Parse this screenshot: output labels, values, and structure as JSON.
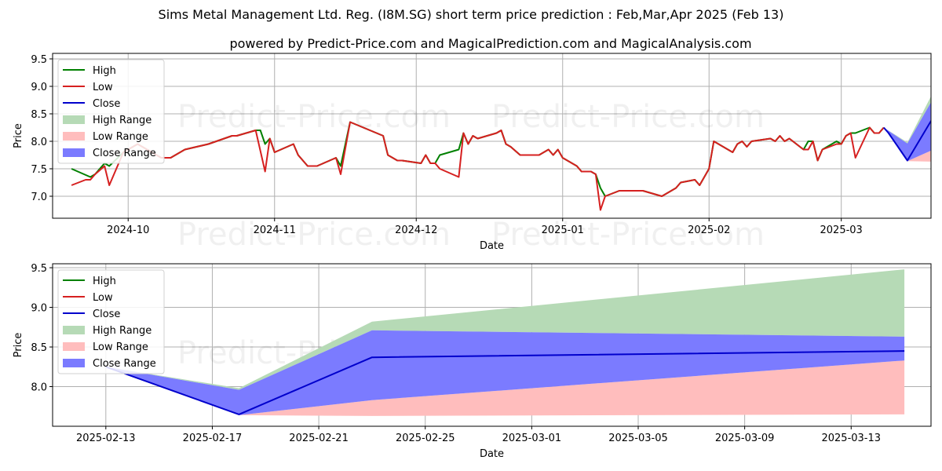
{
  "titles": {
    "main": "Sims Metal Management Ltd. Reg. (I8M.SG) short term price prediction : Feb,Mar,Apr 2025 (Feb 13)",
    "sub": "powered by Predict-Price.com and MagicalPrediction.com and MagicalAnalysis.com"
  },
  "watermark": "Predict-Price.com",
  "colors": {
    "high": "#008000",
    "low": "#d62020",
    "close": "#0000cc",
    "high_range": "#b6dab6",
    "low_range": "#ffbdbd",
    "close_range": "#7b7bff"
  },
  "chart_data": [
    {
      "type": "line",
      "xlabel": "Date",
      "ylabel": "Price",
      "xlim": [
        "2024-09-15",
        "2025-03-20"
      ],
      "ylim": [
        6.6,
        9.6
      ],
      "grid": true,
      "legend_position": "top-left",
      "legend": [
        "High",
        "Low",
        "Close",
        "High Range",
        "Low Range",
        "Close Range"
      ],
      "x_ticks": [
        {
          "date": "2024-10-01",
          "label": "2024-10"
        },
        {
          "date": "2024-11-01",
          "label": "2024-11"
        },
        {
          "date": "2024-12-01",
          "label": "2024-12"
        },
        {
          "date": "2025-01-01",
          "label": "2025-01"
        },
        {
          "date": "2025-02-01",
          "label": "2025-02"
        },
        {
          "date": "2025-03-01",
          "label": "2025-03"
        }
      ],
      "y_ticks": [
        "7.0",
        "7.5",
        "8.0",
        "8.5",
        "9.0",
        "9.5"
      ],
      "series": [
        {
          "name": "High",
          "points": [
            [
              "2024-09-19",
              7.5
            ],
            [
              "2024-09-23",
              7.35
            ],
            [
              "2024-09-24",
              7.4
            ],
            [
              "2024-09-26",
              7.6
            ],
            [
              "2024-09-27",
              7.55
            ],
            [
              "2024-09-30",
              7.8
            ],
            [
              "2024-10-03",
              7.95
            ],
            [
              "2024-10-08",
              7.7
            ],
            [
              "2024-10-10",
              7.7
            ],
            [
              "2024-10-13",
              7.85
            ],
            [
              "2024-10-18",
              7.95
            ],
            [
              "2024-10-23",
              8.1
            ],
            [
              "2024-10-24",
              8.1
            ],
            [
              "2024-10-28",
              8.2
            ],
            [
              "2024-10-29",
              8.2
            ],
            [
              "2024-10-30",
              7.95
            ],
            [
              "2024-10-31",
              8.05
            ],
            [
              "2024-11-01",
              7.8
            ],
            [
              "2024-11-05",
              7.95
            ],
            [
              "2024-11-06",
              7.75
            ],
            [
              "2024-11-08",
              7.55
            ],
            [
              "2024-11-10",
              7.55
            ],
            [
              "2024-11-14",
              7.7
            ],
            [
              "2024-11-15",
              7.55
            ],
            [
              "2024-11-17",
              8.35
            ],
            [
              "2024-11-24",
              8.1
            ],
            [
              "2024-11-25",
              7.75
            ],
            [
              "2024-11-27",
              7.65
            ],
            [
              "2024-11-28",
              7.65
            ],
            [
              "2024-12-02",
              7.6
            ],
            [
              "2024-12-03",
              7.75
            ],
            [
              "2024-12-04",
              7.6
            ],
            [
              "2024-12-05",
              7.6
            ],
            [
              "2024-12-06",
              7.75
            ],
            [
              "2024-12-10",
              7.85
            ],
            [
              "2024-12-11",
              8.15
            ],
            [
              "2024-12-12",
              7.95
            ],
            [
              "2024-12-13",
              8.1
            ],
            [
              "2024-12-14",
              8.05
            ],
            [
              "2024-12-18",
              8.15
            ],
            [
              "2024-12-19",
              8.2
            ],
            [
              "2024-12-20",
              7.95
            ],
            [
              "2024-12-21",
              7.9
            ],
            [
              "2024-12-23",
              7.75
            ],
            [
              "2024-12-27",
              7.75
            ],
            [
              "2024-12-29",
              7.85
            ],
            [
              "2024-12-30",
              7.75
            ],
            [
              "2024-12-31",
              7.85
            ],
            [
              "2025-01-01",
              7.7
            ],
            [
              "2025-01-04",
              7.55
            ],
            [
              "2025-01-05",
              7.45
            ],
            [
              "2025-01-07",
              7.45
            ],
            [
              "2025-01-08",
              7.4
            ],
            [
              "2025-01-09",
              7.15
            ],
            [
              "2025-01-10",
              7.0
            ],
            [
              "2025-01-13",
              7.1
            ],
            [
              "2025-01-18",
              7.1
            ],
            [
              "2025-01-22",
              7.0
            ],
            [
              "2025-01-25",
              7.15
            ],
            [
              "2025-01-26",
              7.25
            ],
            [
              "2025-01-29",
              7.3
            ],
            [
              "2025-01-30",
              7.2
            ],
            [
              "2025-02-01",
              7.5
            ],
            [
              "2025-02-02",
              8.0
            ],
            [
              "2025-02-06",
              7.8
            ],
            [
              "2025-02-07",
              7.95
            ],
            [
              "2025-02-08",
              8.0
            ],
            [
              "2025-02-09",
              7.9
            ],
            [
              "2025-02-10",
              8.0
            ],
            [
              "2025-02-14",
              8.05
            ],
            [
              "2025-02-15",
              8.0
            ],
            [
              "2025-02-16",
              8.1
            ],
            [
              "2025-02-17",
              8.0
            ],
            [
              "2025-02-18",
              8.05
            ],
            [
              "2025-02-21",
              7.85
            ],
            [
              "2025-02-22",
              8.0
            ],
            [
              "2025-02-23",
              8.0
            ],
            [
              "2025-02-24",
              7.65
            ],
            [
              "2025-02-25",
              7.85
            ],
            [
              "2025-02-28",
              8.0
            ],
            [
              "2025-03-01",
              7.95
            ],
            [
              "2025-03-02",
              8.1
            ],
            [
              "2025-03-03",
              8.15
            ],
            [
              "2025-03-04",
              8.15
            ],
            [
              "2025-03-07",
              8.25
            ],
            [
              "2025-03-08",
              8.15
            ],
            [
              "2025-03-09",
              8.15
            ],
            [
              "2025-03-10",
              8.25
            ]
          ]
        },
        {
          "name": "Low",
          "points": [
            [
              "2024-09-19",
              7.2
            ],
            [
              "2024-09-22",
              7.3
            ],
            [
              "2024-09-23",
              7.3
            ],
            [
              "2024-09-24",
              7.4
            ],
            [
              "2024-09-26",
              7.55
            ],
            [
              "2024-09-27",
              7.2
            ],
            [
              "2024-09-30",
              7.8
            ],
            [
              "2024-10-03",
              7.95
            ],
            [
              "2024-10-08",
              7.7
            ],
            [
              "2024-10-10",
              7.7
            ],
            [
              "2024-10-13",
              7.85
            ],
            [
              "2024-10-18",
              7.95
            ],
            [
              "2024-10-23",
              8.1
            ],
            [
              "2024-10-24",
              8.1
            ],
            [
              "2024-10-28",
              8.2
            ],
            [
              "2024-10-30",
              7.45
            ],
            [
              "2024-10-31",
              8.05
            ],
            [
              "2024-11-01",
              7.8
            ],
            [
              "2024-11-05",
              7.95
            ],
            [
              "2024-11-06",
              7.75
            ],
            [
              "2024-11-08",
              7.55
            ],
            [
              "2024-11-10",
              7.55
            ],
            [
              "2024-11-14",
              7.7
            ],
            [
              "2024-11-15",
              7.4
            ],
            [
              "2024-11-17",
              8.35
            ],
            [
              "2024-11-24",
              8.1
            ],
            [
              "2024-11-25",
              7.75
            ],
            [
              "2024-11-27",
              7.65
            ],
            [
              "2024-11-28",
              7.65
            ],
            [
              "2024-12-02",
              7.6
            ],
            [
              "2024-12-03",
              7.75
            ],
            [
              "2024-12-04",
              7.6
            ],
            [
              "2024-12-05",
              7.6
            ],
            [
              "2024-12-06",
              7.5
            ],
            [
              "2024-12-10",
              7.35
            ],
            [
              "2024-12-11",
              8.15
            ],
            [
              "2024-12-12",
              7.95
            ],
            [
              "2024-12-13",
              8.1
            ],
            [
              "2024-12-14",
              8.05
            ],
            [
              "2024-12-18",
              8.15
            ],
            [
              "2024-12-19",
              8.2
            ],
            [
              "2024-12-20",
              7.95
            ],
            [
              "2024-12-21",
              7.9
            ],
            [
              "2024-12-23",
              7.75
            ],
            [
              "2024-12-27",
              7.75
            ],
            [
              "2024-12-29",
              7.85
            ],
            [
              "2024-12-30",
              7.75
            ],
            [
              "2024-12-31",
              7.85
            ],
            [
              "2025-01-01",
              7.7
            ],
            [
              "2025-01-04",
              7.55
            ],
            [
              "2025-01-05",
              7.45
            ],
            [
              "2025-01-07",
              7.45
            ],
            [
              "2025-01-08",
              7.4
            ],
            [
              "2025-01-09",
              6.75
            ],
            [
              "2025-01-10",
              7.0
            ],
            [
              "2025-01-13",
              7.1
            ],
            [
              "2025-01-18",
              7.1
            ],
            [
              "2025-01-22",
              7.0
            ],
            [
              "2025-01-25",
              7.15
            ],
            [
              "2025-01-26",
              7.25
            ],
            [
              "2025-01-29",
              7.3
            ],
            [
              "2025-01-30",
              7.2
            ],
            [
              "2025-02-01",
              7.5
            ],
            [
              "2025-02-02",
              8.0
            ],
            [
              "2025-02-06",
              7.8
            ],
            [
              "2025-02-07",
              7.95
            ],
            [
              "2025-02-08",
              8.0
            ],
            [
              "2025-02-09",
              7.9
            ],
            [
              "2025-02-10",
              8.0
            ],
            [
              "2025-02-14",
              8.05
            ],
            [
              "2025-02-15",
              8.0
            ],
            [
              "2025-02-16",
              8.1
            ],
            [
              "2025-02-17",
              8.0
            ],
            [
              "2025-02-18",
              8.05
            ],
            [
              "2025-02-21",
              7.85
            ],
            [
              "2025-02-22",
              7.85
            ],
            [
              "2025-02-23",
              8.0
            ],
            [
              "2025-02-24",
              7.65
            ],
            [
              "2025-02-25",
              7.85
            ],
            [
              "2025-02-28",
              7.95
            ],
            [
              "2025-03-01",
              7.95
            ],
            [
              "2025-03-02",
              8.1
            ],
            [
              "2025-03-03",
              8.15
            ],
            [
              "2025-03-04",
              7.7
            ],
            [
              "2025-03-07",
              8.25
            ],
            [
              "2025-03-08",
              8.15
            ],
            [
              "2025-03-09",
              8.15
            ],
            [
              "2025-03-10",
              8.25
            ]
          ]
        },
        {
          "name": "Close",
          "points": [
            [
              "2025-03-10",
              8.25
            ],
            [
              "2025-03-11",
              8.15
            ],
            [
              "2025-03-15",
              7.65
            ],
            [
              "2025-03-20",
              8.37
            ],
            [
              "2025-04-15",
              8.45
            ]
          ]
        }
      ],
      "ranges": [
        {
          "name": "High Range",
          "x": [
            "2025-03-10",
            "2025-03-15",
            "2025-03-20",
            "2025-04-15"
          ],
          "upper": [
            8.25,
            7.98,
            8.82,
            9.48
          ],
          "lower": [
            8.25,
            7.96,
            8.71,
            8.63
          ]
        },
        {
          "name": "Low Range",
          "x": [
            "2025-03-10",
            "2025-03-15",
            "2025-03-20",
            "2025-04-15"
          ],
          "upper": [
            8.25,
            7.64,
            7.83,
            8.33
          ],
          "lower": [
            8.25,
            7.64,
            7.63,
            7.65
          ]
        },
        {
          "name": "Close Range",
          "x": [
            "2025-03-10",
            "2025-03-15",
            "2025-03-20",
            "2025-04-15"
          ],
          "upper": [
            8.25,
            7.96,
            8.71,
            8.63
          ],
          "lower": [
            8.25,
            7.64,
            7.83,
            8.33
          ]
        }
      ]
    },
    {
      "type": "line",
      "xlabel": "Date",
      "ylabel": "Price",
      "xlim": [
        "2025-02-11",
        "2025-03-16"
      ],
      "ylim": [
        7.5,
        9.55
      ],
      "grid": true,
      "legend_position": "top-left",
      "legend": [
        "High",
        "Low",
        "Close",
        "High Range",
        "Low Range",
        "Close Range"
      ],
      "x_ticks": [
        {
          "date": "2025-02-13",
          "label": "2025-02-13"
        },
        {
          "date": "2025-02-17",
          "label": "2025-02-17"
        },
        {
          "date": "2025-02-21",
          "label": "2025-02-21"
        },
        {
          "date": "2025-02-25",
          "label": "2025-02-25"
        },
        {
          "date": "2025-03-01",
          "label": "2025-03-01"
        },
        {
          "date": "2025-03-05",
          "label": "2025-03-05"
        },
        {
          "date": "2025-03-09",
          "label": "2025-03-09"
        },
        {
          "date": "2025-03-13",
          "label": "2025-03-13"
        }
      ],
      "y_ticks": [
        "8.0",
        "8.5",
        "9.0",
        "9.5"
      ],
      "series": [
        {
          "name": "Close",
          "points": [
            [
              "2025-02-13",
              8.25
            ],
            [
              "2025-02-18",
              7.65
            ],
            [
              "2025-02-23",
              8.37
            ],
            [
              "2025-03-15",
              8.45
            ]
          ]
        }
      ],
      "ranges": [
        {
          "name": "High Range",
          "x": [
            "2025-02-13",
            "2025-02-18",
            "2025-02-23",
            "2025-03-15"
          ],
          "upper": [
            8.25,
            7.98,
            8.82,
            9.48
          ],
          "lower": [
            8.25,
            7.96,
            8.71,
            8.63
          ]
        },
        {
          "name": "Low Range",
          "x": [
            "2025-02-13",
            "2025-02-18",
            "2025-02-23",
            "2025-03-15"
          ],
          "upper": [
            8.25,
            7.64,
            7.83,
            8.33
          ],
          "lower": [
            8.25,
            7.64,
            7.63,
            7.65
          ]
        },
        {
          "name": "Close Range",
          "x": [
            "2025-02-13",
            "2025-02-18",
            "2025-02-23",
            "2025-03-15"
          ],
          "upper": [
            8.25,
            7.96,
            8.71,
            8.63
          ],
          "lower": [
            8.25,
            7.64,
            7.83,
            8.33
          ]
        }
      ]
    }
  ]
}
